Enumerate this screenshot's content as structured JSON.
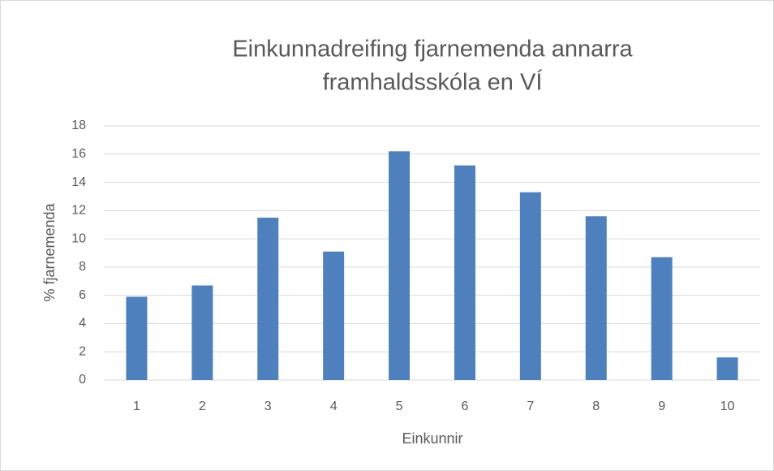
{
  "chart_data": {
    "type": "bar",
    "title": [
      "Einkunnadreifing fjarnemenda annarra",
      "framhaldsskóla en VÍ"
    ],
    "xlabel": "Einkunnir",
    "ylabel": "% fjarnemenda",
    "categories": [
      "1",
      "2",
      "3",
      "4",
      "5",
      "6",
      "7",
      "8",
      "9",
      "10"
    ],
    "values": [
      5.9,
      6.7,
      11.5,
      9.1,
      16.2,
      15.2,
      13.3,
      11.6,
      8.7,
      1.6
    ],
    "color": "#4e80bd",
    "ylim": [
      0,
      18
    ],
    "yticks": [
      0,
      2,
      4,
      6,
      8,
      10,
      12,
      14,
      16,
      18
    ],
    "grid": true
  }
}
